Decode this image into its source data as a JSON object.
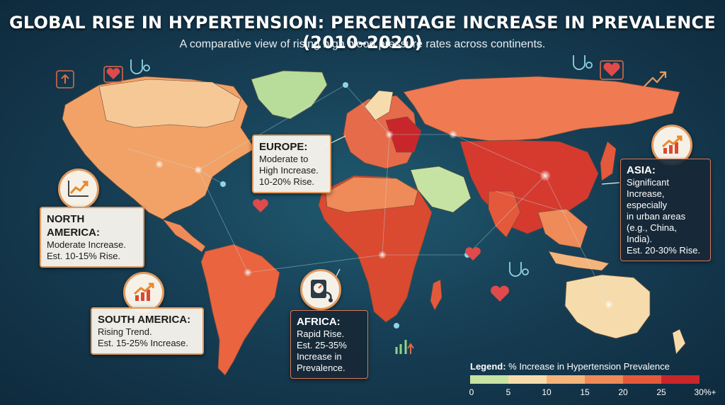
{
  "title": "GLOBAL RISE IN HYPERTENSION: PERCENTAGE INCREASE IN PREVALENCE (2010–2020)",
  "subtitle": "A comparative view of rising high blood pressure rates across continents.",
  "regions": {
    "north_america": {
      "heading": "NORTH AMERICA:",
      "lines": [
        "Moderate Increase.",
        "Est. 10-15% Rise."
      ],
      "color": "#f2a266"
    },
    "europe": {
      "heading": "EUROPE:",
      "lines": [
        "Moderate to",
        "High Increase.",
        "10-20% Rise."
      ],
      "color": "#e66b4a"
    },
    "asia": {
      "heading": "ASIA:",
      "lines": [
        "Significant",
        "Increase, especially",
        "in urban areas",
        "(e.g., China, India).",
        "Est. 20-30% Rise."
      ],
      "color": "#d63a2f"
    },
    "south_america": {
      "heading": "SOUTH AMERICA:",
      "lines": [
        "Rising Trend.",
        "Est. 15-25% Increase."
      ],
      "color": "#e9643f"
    },
    "africa": {
      "heading": "AFRICA:",
      "lines": [
        "Rapid Rise.",
        "Est. 25-35%",
        "Increase in",
        "Prevalence."
      ],
      "color": "#d94a31"
    },
    "australia": {
      "color": "#f6dcac"
    }
  },
  "legend": {
    "label_bold": "Legend:",
    "label_rest": " % Increase in Hypertension Prevalence",
    "colors": [
      "#c7e3a3",
      "#f6dcac",
      "#f4b57c",
      "#ef8a59",
      "#e4593b",
      "#c9262b"
    ],
    "ticks": [
      "0",
      "5",
      "10",
      "15",
      "20",
      "25",
      "30%+"
    ]
  },
  "icons": [
    "trend-up-icon",
    "heart-pulse-icon",
    "stethoscope-icon",
    "blood-pressure-monitor-icon"
  ]
}
